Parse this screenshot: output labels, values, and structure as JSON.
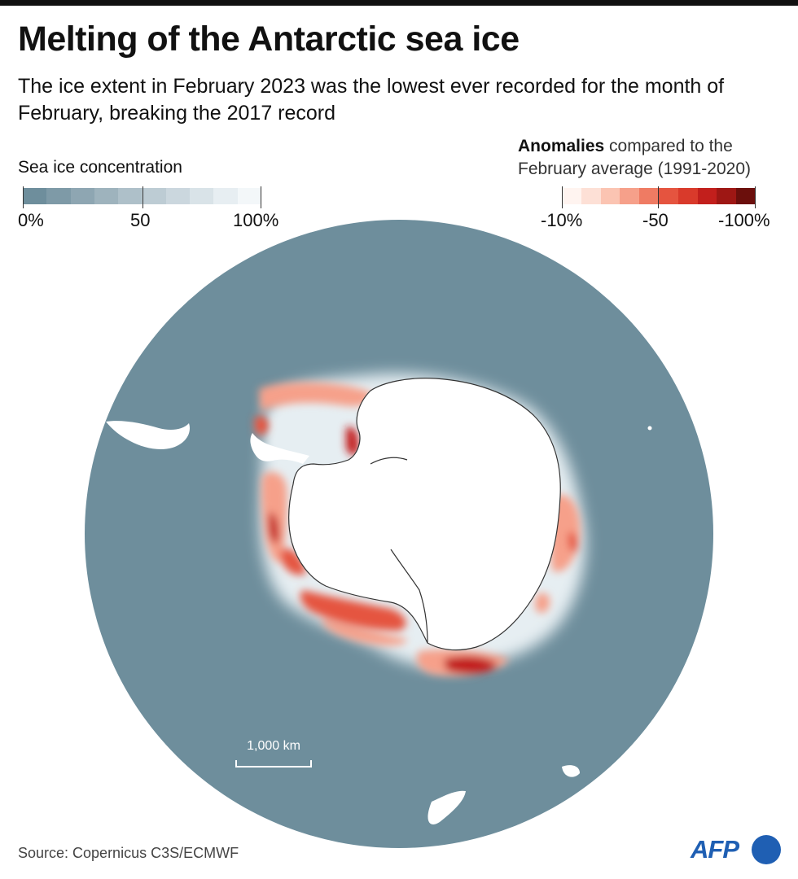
{
  "header": {
    "title": "Melting of the Antarctic sea ice",
    "subtitle": "The ice extent in February 2023 was the lowest ever recorded for the month of February, breaking the 2017 record"
  },
  "legend_concentration": {
    "title": "Sea ice concentration",
    "tick_labels": [
      "0%",
      "50",
      "100%"
    ],
    "ramp_colors": [
      "#6e8e9c",
      "#7e9aa7",
      "#8ea6b2",
      "#9eb3bd",
      "#aec0c9",
      "#bdccd4",
      "#cbd7de",
      "#d9e3e8",
      "#e7eef2",
      "#f3f7f9"
    ]
  },
  "legend_anomaly": {
    "title_bold": "Anomalies",
    "title_rest": " compared to the",
    "title_line2": "February average  (1991-2020)",
    "tick_labels": [
      "-10%",
      "-50",
      "-100%"
    ],
    "ramp_colors": [
      "#fff4f0",
      "#fde0d6",
      "#fbc4b2",
      "#f6a08a",
      "#ef7b63",
      "#e5543f",
      "#d93a2b",
      "#c21f1c",
      "#9e1714",
      "#6b0f0c"
    ]
  },
  "scale_bar": {
    "label": "1,000 km"
  },
  "source": "Source: Copernicus C3S/ECMWF",
  "logo": {
    "text": "AFP"
  },
  "colors": {
    "ocean": "#6e8e9c",
    "land": "#ffffff",
    "coast": "#333333",
    "anomaly_light": "#f6a08a",
    "anomaly_mid": "#e5543f",
    "anomaly_strong": "#c21f1c",
    "ice_light": "#e6eef2"
  }
}
